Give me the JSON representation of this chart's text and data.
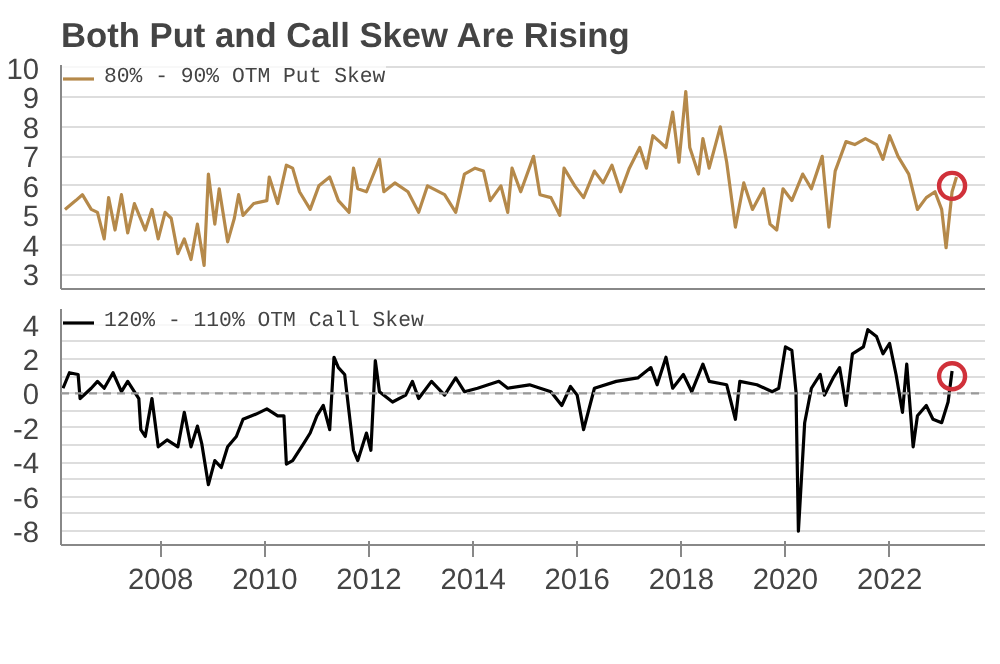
{
  "chart_data": [
    {
      "type": "line",
      "title": "Both Put and Call Skew Are Rising",
      "legend": "top",
      "grid": "y",
      "tick_labels": "y",
      "line_style": "solid",
      "xlim": [
        "2006-02",
        "2023-11"
      ],
      "xticks": [
        "2008",
        "2010",
        "2012",
        "2014",
        "2016",
        "2018",
        "2020",
        "2022"
      ],
      "ylim": [
        2.5,
        10.1
      ],
      "yticks": [
        3,
        4,
        5,
        6,
        7,
        8,
        9,
        10
      ],
      "series": [
        {
          "name": "80% - 90% OTM Put Skew",
          "color": "#b5894a",
          "marker": "none",
          "x": [
            "2006-03-01",
            "2006-05-15",
            "2006-07-01",
            "2006-09-01",
            "2006-10-15",
            "2006-12-01",
            "2007-01-01",
            "2007-02-15",
            "2007-04-01",
            "2007-05-15",
            "2007-07-01",
            "2007-09-15",
            "2007-11-01",
            "2007-12-15",
            "2008-02-01",
            "2008-03-15",
            "2008-05-01",
            "2008-06-15",
            "2008-08-01",
            "2008-09-15",
            "2008-11-01",
            "2008-12-01",
            "2009-01-15",
            "2009-02-15",
            "2009-04-15",
            "2009-06-01",
            "2009-07-01",
            "2009-08-01",
            "2009-10-15",
            "2010-01-15",
            "2010-02-01",
            "2010-04-01",
            "2010-06-01",
            "2010-07-15",
            "2010-09-01",
            "2010-11-15",
            "2011-01-15",
            "2011-04-01",
            "2011-06-01",
            "2011-08-15",
            "2011-09-15",
            "2011-10-15",
            "2011-12-15",
            "2012-03-15",
            "2012-04-15",
            "2012-07-01",
            "2012-10-01",
            "2012-12-15",
            "2013-02-15",
            "2013-06-15",
            "2013-09-01",
            "2013-11-01",
            "2014-01-15",
            "2014-03-15",
            "2014-05-01",
            "2014-07-15",
            "2014-09-01",
            "2014-10-01",
            "2014-12-01",
            "2015-03-01",
            "2015-04-15",
            "2015-07-01",
            "2015-09-01",
            "2015-10-01",
            "2015-12-15",
            "2016-02-15",
            "2016-05-01",
            "2016-07-01",
            "2016-09-01",
            "2016-11-01",
            "2017-01-01",
            "2017-03-15",
            "2017-05-01",
            "2017-06-15",
            "2017-08-01",
            "2017-09-15",
            "2017-11-01",
            "2017-12-15",
            "2018-02-01",
            "2018-03-01",
            "2018-05-01",
            "2018-06-01",
            "2018-07-15",
            "2018-10-01",
            "2018-11-15",
            "2019-01-15",
            "2019-03-15",
            "2019-05-15",
            "2019-08-01",
            "2019-09-15",
            "2019-11-01",
            "2019-12-15",
            "2020-02-15",
            "2020-05-01",
            "2020-07-01",
            "2020-09-15",
            "2020-11-01",
            "2020-12-15",
            "2021-03-01",
            "2021-05-01",
            "2021-07-15",
            "2021-10-01",
            "2021-11-15",
            "2022-01-01",
            "2022-03-01",
            "2022-05-15",
            "2022-07-15",
            "2022-09-15",
            "2022-11-15",
            "2023-01-01",
            "2023-02-01",
            "2023-03-15",
            "2023-04-15"
          ],
          "values": [
            5.2,
            5.5,
            5.7,
            5.2,
            5.1,
            4.2,
            5.6,
            4.5,
            5.7,
            4.4,
            5.4,
            4.5,
            5.2,
            4.2,
            5.1,
            4.9,
            3.7,
            4.2,
            3.5,
            4.7,
            3.3,
            6.4,
            4.7,
            5.9,
            4.1,
            4.9,
            5.7,
            5.0,
            5.4,
            5.5,
            6.3,
            5.4,
            6.7,
            6.6,
            5.8,
            5.2,
            6.0,
            6.3,
            5.5,
            5.1,
            6.6,
            5.9,
            5.8,
            6.9,
            5.8,
            6.1,
            5.8,
            5.1,
            6.0,
            5.7,
            5.1,
            6.4,
            6.6,
            6.5,
            5.5,
            6.0,
            5.1,
            6.6,
            5.8,
            7.0,
            5.7,
            5.6,
            5.0,
            6.6,
            6.0,
            5.6,
            6.5,
            6.1,
            6.7,
            5.8,
            6.6,
            7.3,
            6.6,
            7.7,
            7.5,
            7.3,
            8.5,
            6.8,
            9.2,
            7.3,
            6.4,
            7.6,
            6.6,
            8.0,
            6.8,
            4.6,
            6.1,
            5.2,
            5.9,
            4.7,
            4.5,
            5.9,
            5.5,
            6.4,
            5.9,
            7.0,
            4.6,
            6.5,
            7.5,
            7.4,
            7.6,
            7.4,
            6.9,
            7.7,
            7.0,
            6.4,
            5.2,
            5.6,
            5.8,
            5.2,
            3.9,
            5.8,
            6.3
          ]
        },
        {
          "type": "scatter",
          "color": "#d0313a",
          "marker": "circle",
          "x": [
            "2023-03-15"
          ],
          "values": [
            6.0
          ]
        }
      ]
    },
    {
      "type": "line",
      "legend": "top",
      "grid": "y",
      "line_style": "solid",
      "xlim": [
        "2006-02",
        "2023-11"
      ],
      "xticks": [
        "2008",
        "2010",
        "2012",
        "2014",
        "2016",
        "2018",
        "2020",
        "2022"
      ],
      "ylim": [
        -8.8,
        4.9
      ],
      "yticks": [
        {
          "value": -8,
          "label": "-8"
        },
        {
          "value": -7,
          "label": null
        },
        {
          "value": -6,
          "label": "-6"
        },
        {
          "value": -5,
          "label": null
        },
        {
          "value": -4,
          "label": "-4"
        },
        {
          "value": -3,
          "label": null
        },
        {
          "value": -2,
          "label": "-2"
        },
        {
          "value": -1,
          "label": null
        },
        0,
        {
          "value": 1,
          "label": null
        },
        2,
        {
          "value": 3,
          "label": null
        },
        4
      ],
      "ref_lines": [
        {
          "axis": "y",
          "value": 0,
          "color": "#999999",
          "line_style": "dashed"
        }
      ],
      "series": [
        {
          "name": "120% - 110% OTM Call Skew",
          "color": "#000000",
          "marker": "none",
          "x": [
            "2006-02-15",
            "2006-04-01",
            "2006-06-01",
            "2006-06-15",
            "2006-09-01",
            "2006-10-15",
            "2006-12-01",
            "2007-02-01",
            "2007-04-01",
            "2007-05-15",
            "2007-08-01",
            "2007-08-15",
            "2007-09-15",
            "2007-11-01",
            "2007-12-15",
            "2008-02-15",
            "2008-05-01",
            "2008-06-15",
            "2008-08-01",
            "2008-09-15",
            "2008-10-15",
            "2008-12-01",
            "2009-01-15",
            "2009-03-01",
            "2009-04-15",
            "2009-06-15",
            "2009-08-01",
            "2009-11-01",
            "2010-01-15",
            "2010-04-01",
            "2010-05-15",
            "2010-06-01",
            "2010-07-15",
            "2010-10-01",
            "2010-11-15",
            "2011-01-01",
            "2011-02-15",
            "2011-04-01",
            "2011-05-01",
            "2011-06-01",
            "2011-07-15",
            "2011-09-15",
            "2011-10-15",
            "2011-12-15",
            "2012-01-15",
            "2012-02-15",
            "2012-03-15",
            "2012-06-15",
            "2012-09-15",
            "2012-11-01",
            "2012-12-15",
            "2013-03-15",
            "2013-06-15",
            "2013-09-01",
            "2013-11-01",
            "2014-02-01",
            "2014-07-01",
            "2014-09-01",
            "2015-02-01",
            "2015-07-01",
            "2015-09-15",
            "2015-11-15",
            "2016-01-01",
            "2016-02-15",
            "2016-05-01",
            "2016-10-01",
            "2017-03-01",
            "2017-06-01",
            "2017-07-15",
            "2017-09-15",
            "2017-11-01",
            "2018-01-15",
            "2018-03-15",
            "2018-06-01",
            "2018-07-15",
            "2018-11-15",
            "2019-01-15",
            "2019-02-15",
            "2019-06-15",
            "2019-10-01",
            "2019-11-15",
            "2020-01-01",
            "2020-02-15",
            "2020-03-15",
            "2020-04-01",
            "2020-05-15",
            "2020-07-01",
            "2020-09-01",
            "2020-10-01",
            "2020-12-01",
            "2021-01-15",
            "2021-03-01",
            "2021-04-15",
            "2021-07-01",
            "2021-08-01",
            "2021-10-01",
            "2021-11-15",
            "2022-01-01",
            "2022-02-15",
            "2022-04-01",
            "2022-05-01",
            "2022-06-15",
            "2022-07-15",
            "2022-09-15",
            "2022-11-01",
            "2023-01-01",
            "2023-02-15",
            "2023-03-15"
          ],
          "values": [
            0.3,
            1.2,
            1.1,
            -0.3,
            0.3,
            0.7,
            0.3,
            1.2,
            0.1,
            0.7,
            -0.3,
            -2.1,
            -2.5,
            -0.3,
            -3.1,
            -2.7,
            -3.1,
            -1.1,
            -3.1,
            -1.9,
            -2.9,
            -5.3,
            -3.9,
            -4.3,
            -3.1,
            -2.5,
            -1.5,
            -1.2,
            -0.9,
            -1.3,
            -1.3,
            -4.1,
            -3.9,
            -2.9,
            -2.3,
            -1.3,
            -0.7,
            -2.1,
            2.1,
            1.5,
            1.1,
            -3.3,
            -3.9,
            -2.3,
            -3.3,
            1.9,
            0.1,
            -0.5,
            -0.1,
            0.7,
            -0.3,
            0.7,
            -0.1,
            0.9,
            0.1,
            0.3,
            0.7,
            0.3,
            0.5,
            0.1,
            -0.7,
            0.4,
            -0.1,
            -2.1,
            0.3,
            0.7,
            0.9,
            1.5,
            0.5,
            2.1,
            0.3,
            1.1,
            0.1,
            1.7,
            0.7,
            0.5,
            -1.5,
            0.7,
            0.5,
            0.1,
            0.3,
            2.7,
            2.5,
            0.1,
            -8.0,
            -1.7,
            0.3,
            1.1,
            -0.1,
            0.9,
            1.5,
            -0.7,
            2.3,
            2.7,
            3.7,
            3.3,
            2.3,
            2.9,
            1.1,
            -1.1,
            1.7,
            -3.1,
            -1.3,
            -0.7,
            -1.5,
            -1.7,
            -0.5,
            1.3
          ]
        },
        {
          "type": "scatter",
          "color": "#d0313a",
          "marker": "circle",
          "x": [
            "2023-03-15"
          ],
          "values": [
            1.0
          ]
        }
      ]
    }
  ]
}
